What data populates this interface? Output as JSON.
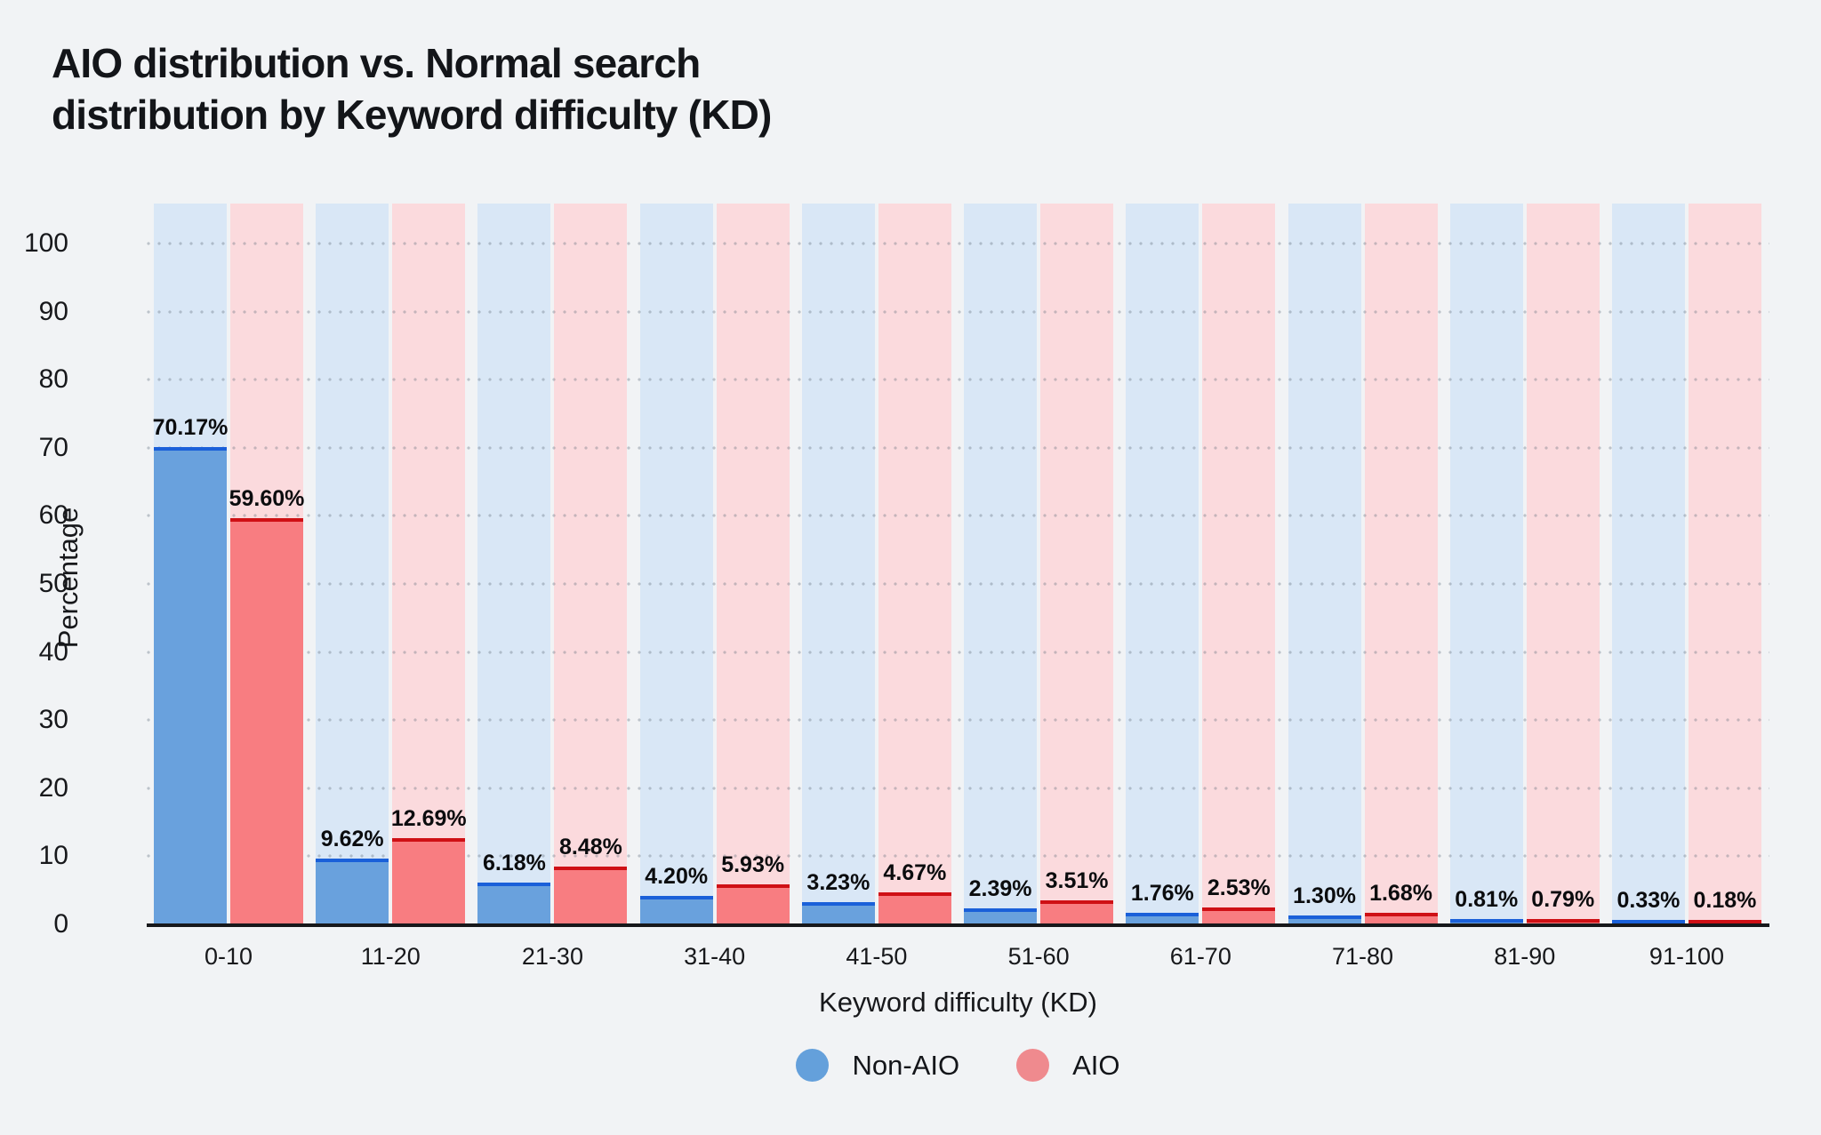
{
  "page": {
    "background": "#F1F3F5"
  },
  "title_lines": [
    "AIO distribution vs. Normal search",
    "distribution by Keyword difficulty (KD)"
  ],
  "chart_data": {
    "type": "bar",
    "title": "AIO distribution vs. Normal search distribution by Keyword difficulty (KD)",
    "xlabel": "Keyword difficulty (KD)",
    "ylabel": "Percentage",
    "ylim": [
      0,
      100
    ],
    "yticks": [
      0,
      10,
      20,
      30,
      40,
      50,
      60,
      70,
      80,
      90,
      100
    ],
    "grid": "dotted-horizontal",
    "legend_position": "bottom",
    "categories": [
      "0-10",
      "11-20",
      "21-30",
      "31-40",
      "41-50",
      "51-60",
      "61-70",
      "71-80",
      "81-90",
      "91-100"
    ],
    "series": [
      {
        "name": "Non-AIO",
        "color": "#69A1DD",
        "border_color": "#1A60D9",
        "tint_color": "#D9E7F6",
        "values": [
          70.17,
          9.62,
          6.18,
          4.2,
          3.23,
          2.39,
          1.76,
          1.3,
          0.81,
          0.33
        ],
        "labels": [
          "70.17%",
          "9.62%",
          "6.18%",
          "4.20%",
          "3.23%",
          "2.39%",
          "1.76%",
          "1.30%",
          "0.81%",
          "0.33%"
        ]
      },
      {
        "name": "AIO",
        "color": "#F87D81",
        "border_color": "#CF1015",
        "tint_color": "#FBDADD",
        "values": [
          59.6,
          12.69,
          8.48,
          5.93,
          4.67,
          3.51,
          2.53,
          1.68,
          0.79,
          0.18
        ],
        "labels": [
          "59.60%",
          "12.69%",
          "8.48%",
          "5.93%",
          "4.67%",
          "3.51%",
          "2.53%",
          "1.68%",
          "0.79%",
          "0.18%"
        ]
      }
    ]
  },
  "legend": {
    "items": [
      {
        "label": "Non-AIO",
        "color": "#64A0DB"
      },
      {
        "label": "AIO",
        "color": "#EF8A8E"
      }
    ]
  },
  "colors": {
    "axis_line": "#17181B",
    "text": "#17181B",
    "data_label": "#0B0C0E"
  }
}
